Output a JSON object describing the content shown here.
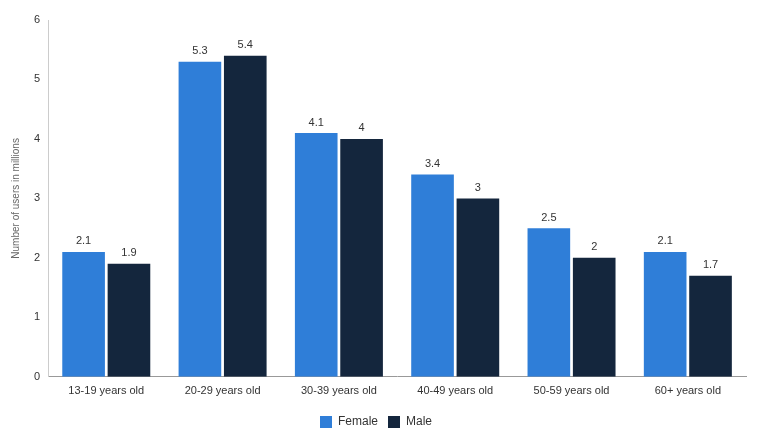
{
  "chart_data": {
    "type": "bar",
    "y_label": "Number of users in millions",
    "categories": [
      "13-19 years old",
      "20-29 years old",
      "30-39 years old",
      "40-49 years old",
      "50-59 years old",
      "60+ years old"
    ],
    "series": [
      {
        "name": "Female",
        "color": "#2f7ed8",
        "values": [
          2.1,
          5.3,
          4.1,
          3.4,
          2.5,
          2.1
        ]
      },
      {
        "name": "Male",
        "color": "#14263d",
        "values": [
          1.9,
          5.4,
          4,
          3,
          2,
          1.7
        ]
      }
    ],
    "ylim": [
      0,
      6
    ],
    "yticks": [
      0,
      1,
      2,
      3,
      4,
      5,
      6
    ],
    "grid": false,
    "legend": "bottom",
    "data_labels": true
  }
}
